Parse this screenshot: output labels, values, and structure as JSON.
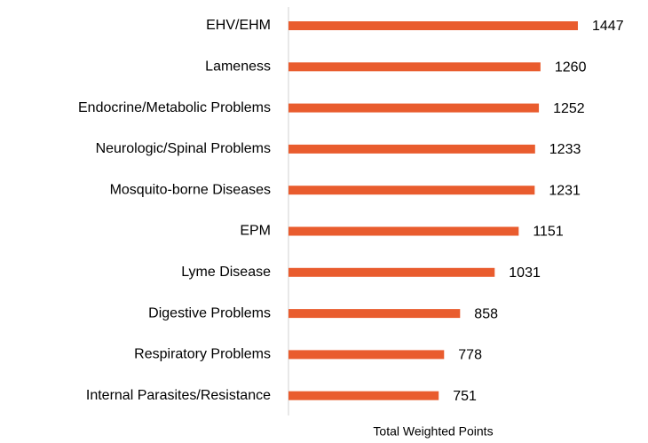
{
  "chart_data": {
    "type": "bar",
    "orientation": "horizontal",
    "x_label": "Total Weighted Points",
    "categories": [
      "EHV/EHM",
      "Lameness",
      "Endocrine/Metabolic Problems",
      "Neurologic/Spinal Problems",
      "Mosquito-borne Diseases",
      "EPM",
      "Lyme Disease",
      "Digestive Problems",
      "Respiratory Problems",
      "Internal Parasites/Resistance"
    ],
    "values": [
      1447,
      1260,
      1252,
      1233,
      1231,
      1151,
      1031,
      858,
      778,
      751
    ],
    "color": "#e95c2e",
    "xlim": [
      0,
      1600
    ]
  }
}
